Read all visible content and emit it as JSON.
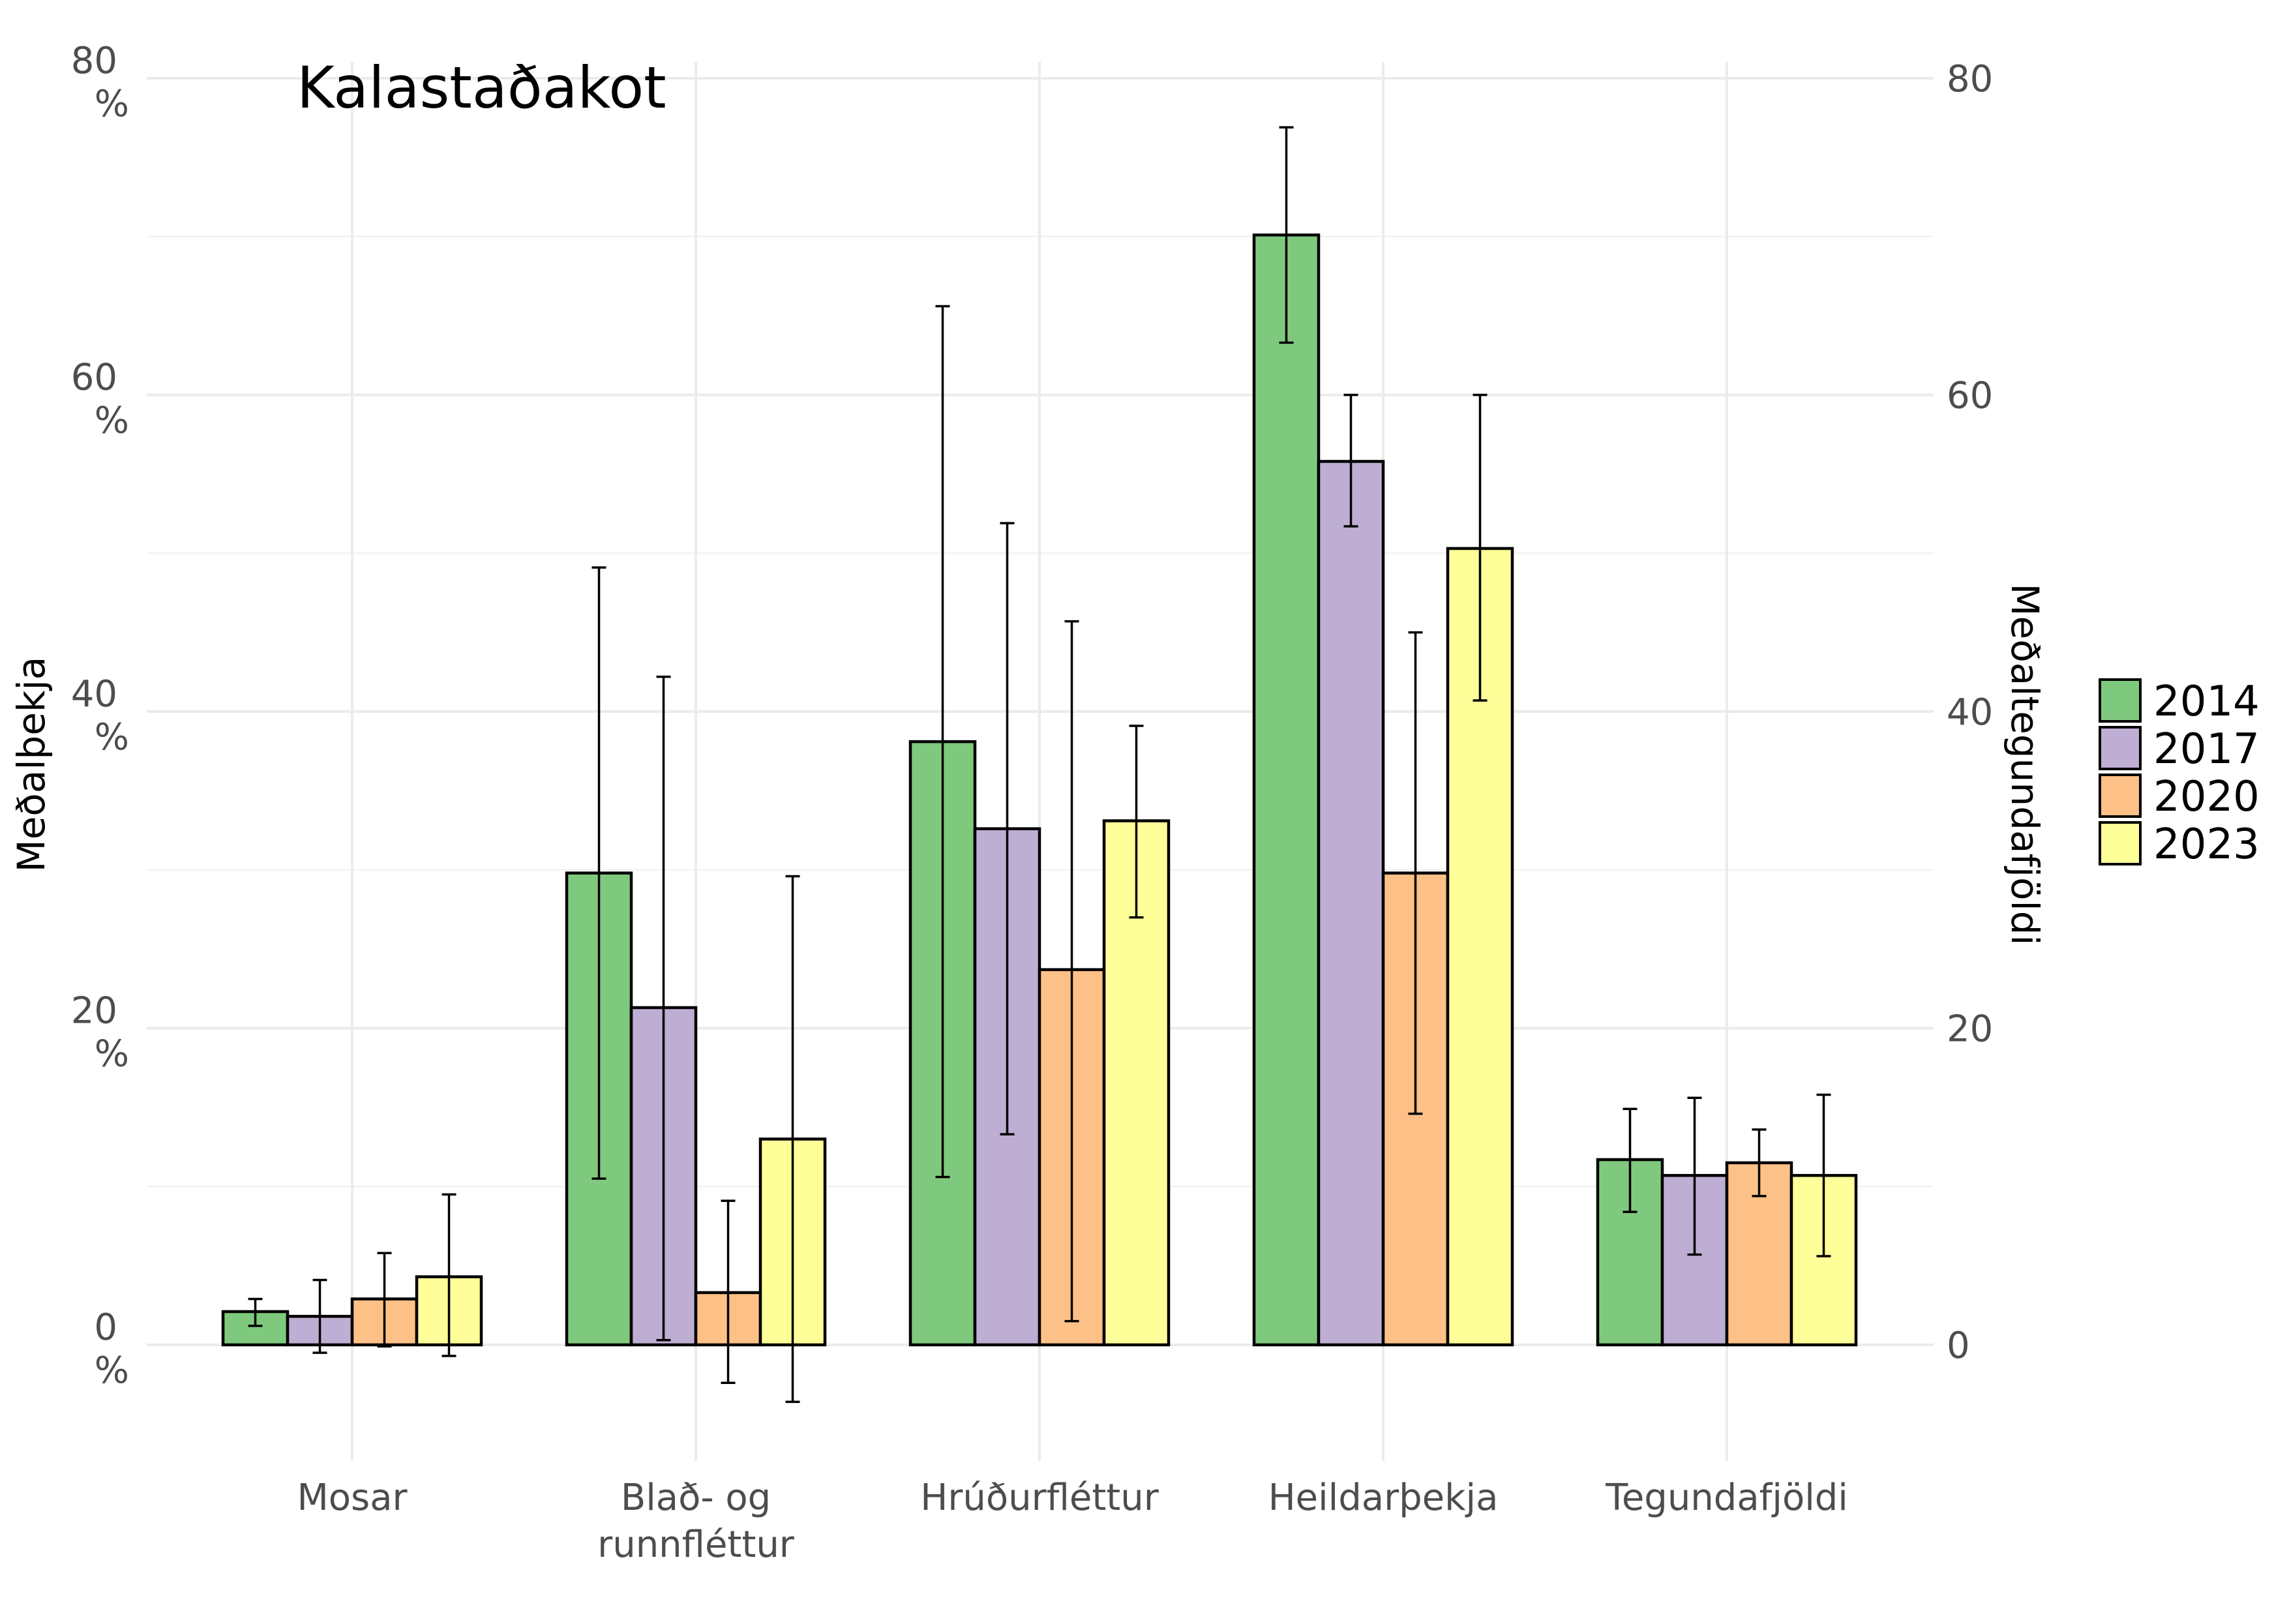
{
  "chart_data": {
    "type": "bar",
    "title": "Kalastaðakot",
    "ylabel": "Meðalþekja",
    "ylabel_right": "Meðaltegundafjöldi",
    "categories": [
      "Mosar",
      "Blað- og\nrunnfléttur",
      "Hrúðurfléttur",
      "Heildarþekja",
      "Tegundafjöldi"
    ],
    "ylim": [
      -7,
      80
    ],
    "y_ticks_left": [
      "0\n%",
      "20\n%",
      "40\n%",
      "60\n%",
      "80\n%"
    ],
    "y_ticks_right": [
      "0",
      "20",
      "40",
      "60",
      "80"
    ],
    "y_tick_values": [
      0,
      20,
      40,
      60,
      80
    ],
    "grid": true,
    "legend_position": "right",
    "series": [
      {
        "name": "2014",
        "color": "#7fc97f",
        "values": [
          2.1,
          29.8,
          38.1,
          70.1,
          11.7
        ],
        "err_low": [
          1.2,
          10.5,
          10.6,
          63.3,
          8.4
        ],
        "err_high": [
          2.9,
          49.1,
          65.6,
          76.9,
          14.9
        ]
      },
      {
        "name": "2017",
        "color": "#beaed4",
        "values": [
          1.8,
          21.3,
          32.6,
          55.8,
          10.7
        ],
        "err_low": [
          -0.5,
          0.3,
          13.3,
          51.7,
          5.7
        ],
        "err_high": [
          4.1,
          42.2,
          51.9,
          60.0,
          15.6
        ]
      },
      {
        "name": "2020",
        "color": "#fdc086",
        "values": [
          2.9,
          3.3,
          23.7,
          29.8,
          11.5
        ],
        "err_low": [
          -0.1,
          -2.4,
          1.5,
          14.6,
          9.4
        ],
        "err_high": [
          5.8,
          9.1,
          45.7,
          45.0,
          13.6
        ]
      },
      {
        "name": "2023",
        "color": "#ffff99",
        "values": [
          4.3,
          13.0,
          33.1,
          50.3,
          10.7
        ],
        "err_low": [
          -0.7,
          -3.6,
          27.0,
          40.7,
          5.6
        ],
        "err_high": [
          9.5,
          29.6,
          39.1,
          60.0,
          15.8
        ]
      }
    ]
  }
}
